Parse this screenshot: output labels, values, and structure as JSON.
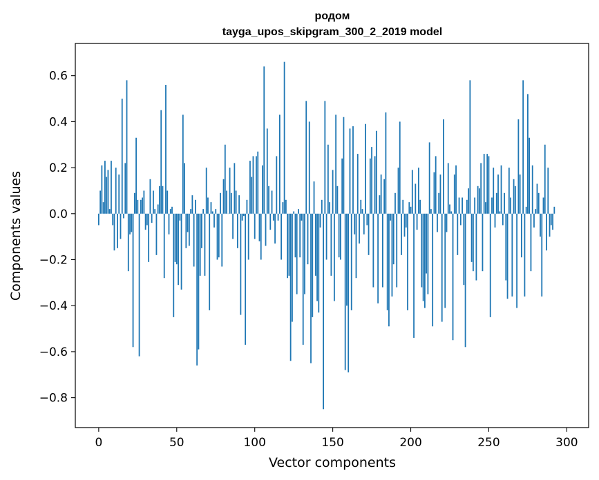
{
  "chart_data": {
    "type": "bar",
    "title": "родом",
    "subtitle": "tayga_upos_skipgram_300_2_2019 model",
    "xlabel": "Vector components",
    "ylabel": "Components values",
    "xlim": [
      -15,
      314
    ],
    "ylim": [
      -0.93,
      0.74
    ],
    "xticks": [
      0,
      50,
      100,
      150,
      200,
      250,
      300
    ],
    "xtick_labels": [
      "0",
      "50",
      "100",
      "150",
      "200",
      "250",
      "300"
    ],
    "yticks": [
      0.6,
      0.4,
      0.2,
      0.0,
      -0.2,
      -0.4,
      -0.6,
      -0.8
    ],
    "ytick_labels": [
      "0.6",
      "0.4",
      "0.2",
      "0.0",
      "−0.2",
      "−0.4",
      "−0.6",
      "−0.8"
    ],
    "grid": false,
    "bar_color": "#1f77b4",
    "values": [
      -0.05,
      0.1,
      0.21,
      0.05,
      0.23,
      0.16,
      0.19,
      0.02,
      0.23,
      -0.05,
      -0.16,
      0.2,
      -0.15,
      0.17,
      -0.11,
      0.5,
      -0.02,
      0.22,
      0.58,
      -0.25,
      -0.09,
      -0.08,
      -0.58,
      0.09,
      0.33,
      0.06,
      -0.62,
      0.06,
      0.07,
      0.1,
      -0.07,
      -0.05,
      -0.21,
      0.15,
      -0.04,
      0.1,
      0.02,
      -0.18,
      0.04,
      0.12,
      0.45,
      0.12,
      -0.28,
      0.56,
      0.1,
      -0.09,
      0.02,
      0.03,
      -0.45,
      -0.21,
      -0.22,
      -0.31,
      -0.03,
      -0.33,
      0.43,
      0.22,
      -0.15,
      -0.08,
      -0.14,
      0.02,
      0.08,
      -0.23,
      0.06,
      -0.66,
      -0.59,
      -0.27,
      -0.15,
      0.02,
      -0.27,
      0.2,
      0.07,
      -0.42,
      0.05,
      0.01,
      -0.06,
      0.02,
      -0.2,
      -0.19,
      0.09,
      -0.23,
      0.15,
      0.3,
      0.1,
      0.0,
      0.2,
      0.09,
      -0.11,
      0.22,
      0.1,
      -0.15,
      0.08,
      -0.44,
      -0.03,
      -0.01,
      -0.57,
      0.06,
      -0.2,
      0.23,
      0.16,
      0.25,
      -0.11,
      0.25,
      0.27,
      -0.12,
      -0.2,
      0.21,
      0.64,
      -0.14,
      0.37,
      0.12,
      -0.07,
      0.1,
      -0.03,
      -0.13,
      0.25,
      -0.03,
      0.43,
      -0.2,
      0.05,
      0.66,
      0.06,
      -0.28,
      -0.27,
      -0.64,
      -0.47,
      0.01,
      -0.19,
      -0.35,
      0.02,
      -0.19,
      -0.03,
      -0.57,
      -0.35,
      0.49,
      -0.22,
      0.4,
      -0.65,
      -0.45,
      0.14,
      -0.27,
      -0.38,
      -0.43,
      -0.06,
      0.06,
      -0.85,
      0.49,
      -0.2,
      0.3,
      0.05,
      -0.27,
      0.19,
      -0.38,
      0.43,
      0.12,
      -0.19,
      -0.2,
      0.24,
      0.42,
      -0.68,
      -0.4,
      -0.69,
      0.37,
      -0.42,
      0.38,
      -0.09,
      -0.28,
      0.26,
      -0.13,
      0.06,
      0.02,
      -0.09,
      0.39,
      -0.05,
      -0.18,
      0.24,
      0.29,
      -0.32,
      0.25,
      0.36,
      -0.39,
      0.08,
      0.17,
      -0.32,
      0.15,
      0.44,
      -0.42,
      -0.49,
      -0.03,
      -0.36,
      -0.22,
      0.09,
      -0.32,
      0.2,
      0.4,
      -0.18,
      0.06,
      -0.1,
      -0.06,
      -0.42,
      0.05,
      0.03,
      0.19,
      -0.54,
      0.13,
      -0.07,
      0.2,
      0.06,
      -0.32,
      -0.38,
      -0.41,
      -0.26,
      -0.35,
      0.31,
      0.02,
      -0.49,
      0.18,
      0.25,
      -0.08,
      0.09,
      0.17,
      -0.47,
      0.41,
      -0.41,
      -0.08,
      0.22,
      0.04,
      0.01,
      -0.55,
      0.17,
      0.21,
      -0.18,
      0.07,
      -0.05,
      0.07,
      -0.31,
      -0.58,
      0.06,
      0.11,
      0.58,
      -0.21,
      -0.25,
      0.07,
      -0.29,
      0.12,
      0.11,
      0.22,
      -0.25,
      0.26,
      0.05,
      0.26,
      0.25,
      -0.45,
      0.07,
      0.2,
      -0.06,
      0.09,
      0.17,
      0.01,
      0.21,
      -0.05,
      0.09,
      -0.29,
      -0.37,
      0.2,
      0.07,
      -0.36,
      0.15,
      0.12,
      -0.41,
      0.41,
      0.17,
      -0.19,
      0.58,
      -0.36,
      0.03,
      0.52,
      0.33,
      -0.25,
      0.21,
      -0.06,
      0.02,
      0.13,
      0.09,
      -0.1,
      -0.36,
      0.07,
      0.3,
      -0.16,
      0.2,
      -0.1,
      -0.05,
      -0.07,
      0.03
    ]
  }
}
